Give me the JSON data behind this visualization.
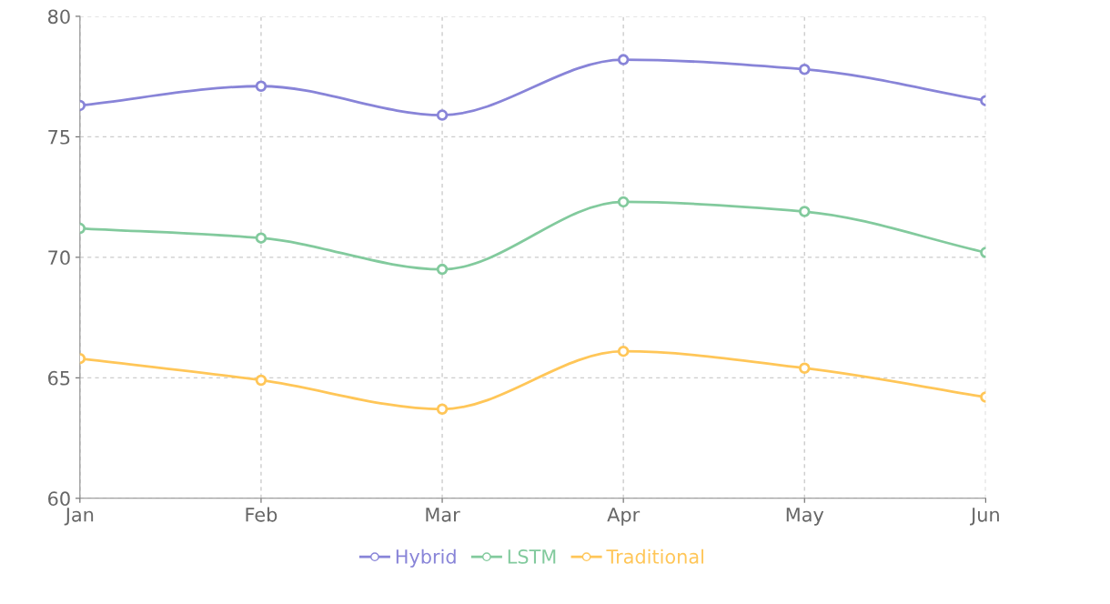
{
  "chart_data": {
    "type": "line",
    "categories": [
      "Jan",
      "Feb",
      "Mar",
      "Apr",
      "May",
      "Jun"
    ],
    "series": [
      {
        "name": "Hybrid",
        "color": "#8884d8",
        "values": [
          76.3,
          77.1,
          75.9,
          78.2,
          77.8,
          76.5
        ]
      },
      {
        "name": "LSTM",
        "color": "#82ca9d",
        "values": [
          71.2,
          70.8,
          69.5,
          72.3,
          71.9,
          70.2
        ]
      },
      {
        "name": "Traditional",
        "color": "#ffc658",
        "values": [
          65.8,
          64.9,
          63.7,
          66.1,
          65.4,
          64.2
        ]
      }
    ],
    "ylim": [
      60,
      80
    ],
    "yticks": [
      60,
      65,
      70,
      75,
      80
    ],
    "grid": true,
    "legend": "bottom",
    "marker": "circle",
    "line_style": "solid"
  }
}
